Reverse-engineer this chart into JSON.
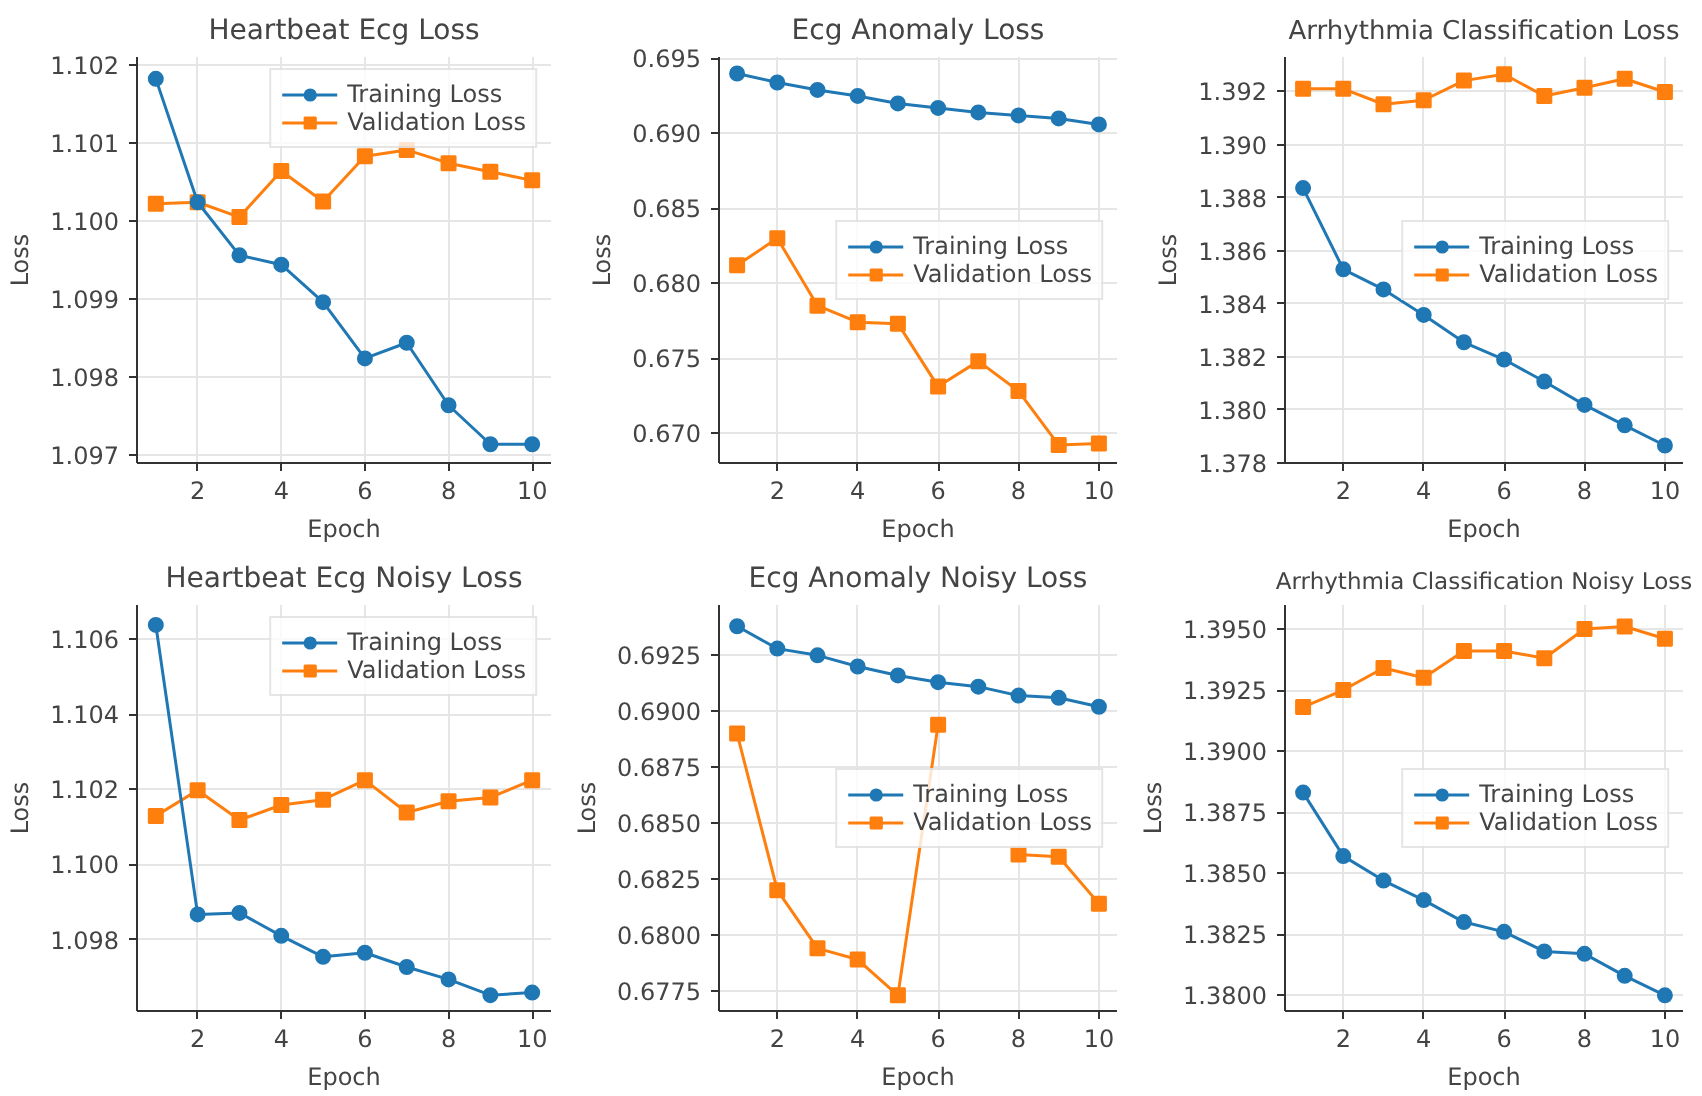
{
  "chart_data": [
    {
      "type": "line",
      "title": "Heartbeat Ecg Loss",
      "xlabel": "Epoch",
      "ylabel": "Loss",
      "x": [
        1,
        2,
        3,
        4,
        5,
        6,
        7,
        8,
        9,
        10
      ],
      "xlim": [
        0.55,
        10.45
      ],
      "xticks": [
        2,
        4,
        6,
        8,
        10
      ],
      "ylim": [
        1.0969,
        1.1021
      ],
      "yticks": [
        1.097,
        1.098,
        1.099,
        {
          "value": 1.1,
          "label": "1.100"
        },
        1.101,
        1.102
      ],
      "grid": true,
      "legend": "top right",
      "series": [
        {
          "name": "Training Loss",
          "color": "#1f77b4",
          "marker": "circle",
          "values": [
            1.10182,
            1.10024,
            1.09956,
            1.09944,
            1.09896,
            1.09824,
            1.09844,
            1.09764,
            1.09714,
            1.09714
          ]
        },
        {
          "name": "Validation Loss",
          "color": "#ff7f0e",
          "marker": "square",
          "values": [
            1.10022,
            1.10024,
            1.10005,
            1.10064,
            1.10025,
            1.10083,
            1.10091,
            1.10074,
            1.10063,
            1.10052
          ]
        }
      ]
    },
    {
      "type": "line",
      "title": "Ecg Anomaly Loss",
      "xlabel": "Epoch",
      "ylabel": "Loss",
      "x": [
        1,
        2,
        3,
        4,
        5,
        6,
        7,
        8,
        9,
        10
      ],
      "xlim": [
        0.55,
        10.45
      ],
      "xticks": [
        2,
        4,
        6,
        8,
        10
      ],
      "ylim": [
        0.668,
        0.6951
      ],
      "yticks": [
        {
          "value": 0.67,
          "label": "0.670"
        },
        0.675,
        {
          "value": 0.68,
          "label": "0.680"
        },
        0.685,
        {
          "value": 0.69,
          "label": "0.690"
        },
        0.695
      ],
      "grid": true,
      "legend": "center right",
      "series": [
        {
          "name": "Training Loss",
          "color": "#1f77b4",
          "marker": "circle",
          "values": [
            0.694,
            0.6934,
            0.6929,
            0.6925,
            0.692,
            0.6917,
            0.6914,
            0.6912,
            0.691,
            0.6906
          ]
        },
        {
          "name": "Validation Loss",
          "color": "#ff7f0e",
          "marker": "square",
          "values": [
            0.6812,
            0.683,
            0.6785,
            0.6774,
            0.6773,
            0.6731,
            0.6748,
            0.6728,
            0.6692,
            0.6693
          ]
        }
      ]
    },
    {
      "type": "line",
      "title": "Arrhythmia Classification Loss",
      "xlabel": "Epoch",
      "ylabel": "Loss",
      "x": [
        1,
        2,
        3,
        4,
        5,
        6,
        7,
        8,
        9,
        10
      ],
      "xlim": [
        0.55,
        10.45
      ],
      "xticks": [
        2,
        4,
        6,
        8,
        10
      ],
      "ylim": [
        1.378,
        1.3933
      ],
      "yticks": [
        1.378,
        {
          "value": 1.38,
          "label": "1.380"
        },
        1.382,
        1.384,
        1.386,
        1.388,
        {
          "value": 1.39,
          "label": "1.390"
        },
        1.392
      ],
      "grid": true,
      "legend": "center right",
      "series": [
        {
          "name": "Training Loss",
          "color": "#1f77b4",
          "marker": "circle",
          "values": [
            1.38836,
            1.3853,
            1.38454,
            1.38358,
            1.38255,
            1.3819,
            1.38107,
            1.38019,
            1.37942,
            1.37866
          ]
        },
        {
          "name": "Validation Loss",
          "color": "#ff7f0e",
          "marker": "square",
          "values": [
            1.3921,
            1.3921,
            1.39152,
            1.39167,
            1.39241,
            1.39265,
            1.39183,
            1.39214,
            1.39248,
            1.39198
          ]
        }
      ]
    },
    {
      "type": "line",
      "title": "Heartbeat Ecg Noisy Loss",
      "xlabel": "Epoch",
      "ylabel": "Loss",
      "x": [
        1,
        2,
        3,
        4,
        5,
        6,
        7,
        8,
        9,
        10
      ],
      "xlim": [
        0.55,
        10.45
      ],
      "xticks": [
        2,
        4,
        6,
        8,
        10
      ],
      "ylim": [
        1.0961,
        1.1069
      ],
      "yticks": [
        1.098,
        {
          "value": 1.1,
          "label": "1.100"
        },
        1.102,
        1.104,
        1.106
      ],
      "grid": true,
      "legend": "top right",
      "series": [
        {
          "name": "Training Loss",
          "color": "#1f77b4",
          "marker": "circle",
          "values": [
            1.10637,
            1.09867,
            1.09871,
            1.0981,
            1.09754,
            1.09765,
            1.09727,
            1.09694,
            1.09652,
            1.09659
          ]
        },
        {
          "name": "Validation Loss",
          "color": "#ff7f0e",
          "marker": "square",
          "values": [
            1.10129,
            1.10197,
            1.10118,
            1.10158,
            1.10172,
            1.10224,
            1.10138,
            1.10168,
            1.10178,
            1.10224
          ]
        }
      ]
    },
    {
      "type": "line",
      "title": "Ecg Anomaly Noisy Loss",
      "xlabel": "Epoch",
      "ylabel": "Loss",
      "x": [
        1,
        2,
        3,
        4,
        5,
        6,
        7,
        8,
        9,
        10
      ],
      "xlim": [
        0.55,
        10.45
      ],
      "xticks": [
        2,
        4,
        6,
        8,
        10
      ],
      "ylim": [
        0.6766,
        0.69475
      ],
      "yticks": [
        0.6775,
        {
          "value": 0.68,
          "label": "0.6800"
        },
        0.6825,
        {
          "value": 0.685,
          "label": "0.6850"
        },
        0.6875,
        {
          "value": 0.69,
          "label": "0.6900"
        },
        0.6925
      ],
      "grid": true,
      "legend": "center right",
      "series": [
        {
          "name": "Training Loss",
          "color": "#1f77b4",
          "marker": "circle",
          "values": [
            0.6938,
            0.6928,
            0.6925,
            0.692,
            0.6916,
            0.6913,
            0.6911,
            0.6907,
            0.6906,
            0.6902
          ]
        },
        {
          "name": "Validation Loss",
          "color": "#ff7f0e",
          "marker": "square",
          "values": [
            0.689,
            0.682,
            0.6794,
            0.6789,
            0.6773,
            0.6894,
            null,
            0.6836,
            0.6835,
            0.6814
          ]
        }
      ]
    },
    {
      "type": "line",
      "title": "Arrhythmia Classification Noisy Loss",
      "xlabel": "Epoch",
      "ylabel": "Loss",
      "x": [
        1,
        2,
        3,
        4,
        5,
        6,
        7,
        8,
        9,
        10
      ],
      "xlim": [
        0.55,
        10.45
      ],
      "xticks": [
        2,
        4,
        6,
        8,
        10
      ],
      "ylim": [
        1.37936,
        1.39598
      ],
      "yticks": [
        {
          "value": 1.38,
          "label": "1.3800"
        },
        1.3825,
        {
          "value": 1.385,
          "label": "1.3850"
        },
        1.3875,
        {
          "value": 1.39,
          "label": "1.3900"
        },
        1.3925,
        {
          "value": 1.395,
          "label": "1.3950"
        }
      ],
      "grid": true,
      "legend": "center right",
      "series": [
        {
          "name": "Training Loss",
          "color": "#1f77b4",
          "marker": "circle",
          "values": [
            1.3883,
            1.3857,
            1.3847,
            1.3839,
            1.383,
            1.3826,
            1.3818,
            1.3817,
            1.3808,
            1.38
          ]
        },
        {
          "name": "Validation Loss",
          "color": "#ff7f0e",
          "marker": "square",
          "values": [
            1.3918,
            1.3925,
            1.3934,
            1.393,
            1.3941,
            1.3941,
            1.3938,
            1.395,
            1.3951,
            1.3946
          ]
        }
      ]
    }
  ]
}
